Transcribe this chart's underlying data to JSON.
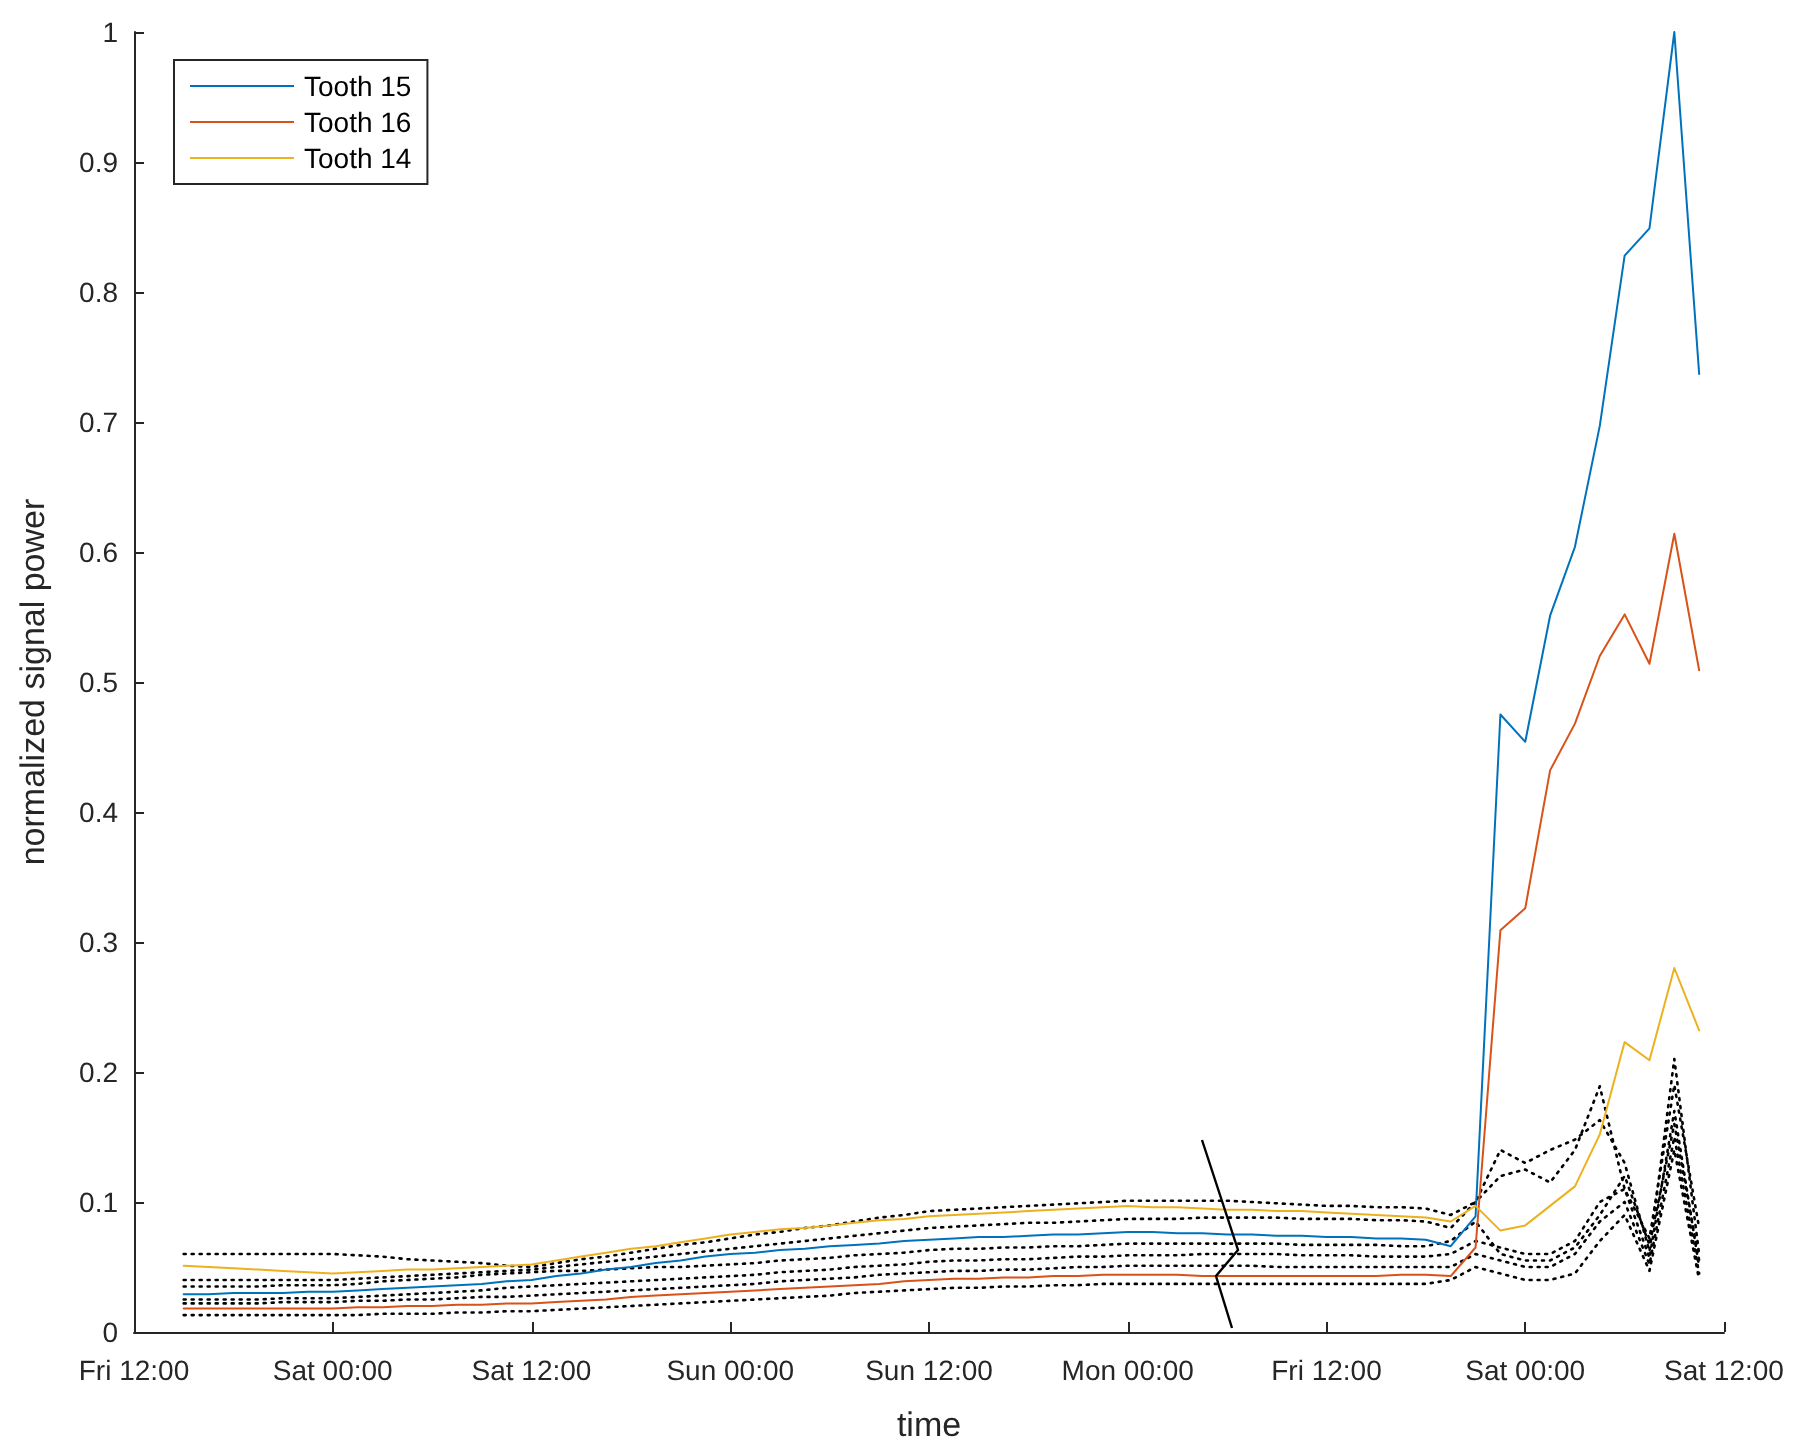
{
  "chart_data": {
    "type": "line",
    "xlabel": "time",
    "ylabel": "normalized signal power",
    "categories": [
      "Fri 12:00",
      null,
      null,
      null,
      null,
      null,
      null,
      null,
      "Sat 00:00",
      null,
      null,
      null,
      null,
      null,
      null,
      null,
      "Sat 12:00",
      null,
      null,
      null,
      null,
      null,
      null,
      null,
      "Sun 00:00",
      null,
      null,
      null,
      null,
      null,
      null,
      null,
      "Sun 12:00",
      null,
      null,
      null,
      null,
      null,
      null,
      null,
      "Mon 00:00",
      null,
      null,
      null,
      null,
      null,
      null,
      null,
      "Fri 12:00",
      null,
      null,
      null,
      null,
      null,
      null,
      null,
      "Sat 00:00",
      null,
      null,
      null,
      null,
      null,
      null,
      null,
      "Sat 12:00"
    ],
    "ylim": [
      0,
      1
    ],
    "yticks": [
      0,
      0.1,
      0.2,
      0.3,
      0.4,
      0.5,
      0.6,
      0.7,
      0.8,
      0.9,
      1
    ],
    "grid": false,
    "legend": "top left",
    "marker": "none",
    "line_style": "solid",
    "series": [
      {
        "color": "#000000",
        "line_style": "dotted",
        "values": [
          null,
          null,
          0.06,
          0.06,
          0.06,
          0.06,
          0.06,
          0.06,
          0.06,
          0.059,
          0.058,
          0.056,
          0.055,
          0.054,
          0.053,
          0.051,
          0.05,
          0.053,
          0.056,
          0.058,
          0.061,
          0.064,
          0.067,
          0.069,
          0.072,
          0.075,
          0.077,
          0.08,
          0.082,
          0.085,
          0.088,
          0.09,
          0.093,
          0.094,
          0.095,
          0.096,
          0.097,
          0.098,
          0.099,
          0.1,
          0.101,
          0.101,
          0.101,
          0.101,
          0.101,
          0.1,
          0.099,
          0.098,
          0.097,
          0.097,
          0.096,
          0.096,
          0.095,
          0.09,
          0.1,
          0.14,
          0.13,
          0.14,
          0.148,
          0.163,
          0.13,
          0.062,
          0.21,
          0.06,
          null
        ]
      },
      {
        "color": "#000000",
        "line_style": "dotted",
        "values": [
          null,
          null,
          0.04,
          0.04,
          0.04,
          0.04,
          0.04,
          0.04,
          0.04,
          0.041,
          0.042,
          0.043,
          0.044,
          0.045,
          0.046,
          0.047,
          0.048,
          0.05,
          0.052,
          0.054,
          0.056,
          0.058,
          0.06,
          0.062,
          0.064,
          0.066,
          0.068,
          0.07,
          0.072,
          0.074,
          0.076,
          0.078,
          0.08,
          0.081,
          0.082,
          0.083,
          0.084,
          0.084,
          0.085,
          0.086,
          0.087,
          0.087,
          0.087,
          0.088,
          0.088,
          0.088,
          0.088,
          0.087,
          0.087,
          0.087,
          0.086,
          0.086,
          0.085,
          0.08,
          0.1,
          0.12,
          0.125,
          0.115,
          0.14,
          0.189,
          0.11,
          0.072,
          0.19,
          0.08,
          null
        ]
      },
      {
        "color": "#000000",
        "line_style": "dotted",
        "values": [
          null,
          null,
          0.035,
          0.035,
          0.035,
          0.035,
          0.036,
          0.036,
          0.036,
          0.037,
          0.039,
          0.04,
          0.041,
          0.042,
          0.044,
          0.045,
          0.046,
          0.047,
          0.047,
          0.048,
          0.049,
          0.05,
          0.05,
          0.051,
          0.052,
          0.053,
          0.055,
          0.056,
          0.057,
          0.059,
          0.06,
          0.061,
          0.063,
          0.064,
          0.064,
          0.065,
          0.065,
          0.066,
          0.066,
          0.067,
          0.068,
          0.068,
          0.068,
          0.068,
          0.068,
          0.068,
          0.068,
          0.067,
          0.067,
          0.067,
          0.067,
          0.066,
          0.066,
          0.07,
          0.085,
          0.06,
          0.055,
          0.055,
          0.065,
          0.09,
          0.12,
          0.067,
          0.16,
          0.055,
          null
        ]
      },
      {
        "color": "#000000",
        "line_style": "dotted",
        "values": [
          null,
          null,
          0.025,
          0.025,
          0.025,
          0.025,
          0.026,
          0.026,
          0.026,
          0.027,
          0.028,
          0.029,
          0.03,
          0.031,
          0.032,
          0.034,
          0.035,
          0.036,
          0.037,
          0.038,
          0.039,
          0.04,
          0.041,
          0.042,
          0.043,
          0.044,
          0.046,
          0.047,
          0.048,
          0.05,
          0.051,
          0.052,
          0.054,
          0.055,
          0.055,
          0.056,
          0.056,
          0.057,
          0.058,
          0.058,
          0.059,
          0.059,
          0.059,
          0.06,
          0.06,
          0.06,
          0.06,
          0.059,
          0.059,
          0.059,
          0.058,
          0.058,
          0.058,
          0.06,
          0.07,
          0.065,
          0.06,
          0.06,
          0.07,
          0.1,
          0.11,
          0.057,
          0.17,
          0.05,
          null
        ]
      },
      {
        "color": "#000000",
        "line_style": "dotted",
        "values": [
          null,
          null,
          0.022,
          0.022,
          0.022,
          0.022,
          0.023,
          0.023,
          0.023,
          0.024,
          0.024,
          0.025,
          0.025,
          0.026,
          0.027,
          0.027,
          0.028,
          0.029,
          0.03,
          0.031,
          0.032,
          0.033,
          0.034,
          0.035,
          0.036,
          0.037,
          0.039,
          0.04,
          0.041,
          0.042,
          0.044,
          0.045,
          0.046,
          0.047,
          0.047,
          0.048,
          0.048,
          0.049,
          0.05,
          0.05,
          0.051,
          0.051,
          0.051,
          0.051,
          0.051,
          0.051,
          0.05,
          0.05,
          0.05,
          0.05,
          0.05,
          0.05,
          0.05,
          0.05,
          0.06,
          0.055,
          0.05,
          0.05,
          0.06,
          0.085,
          0.1,
          0.052,
          0.15,
          0.045,
          null
        ]
      },
      {
        "color": "#000000",
        "line_style": "dotted",
        "values": [
          null,
          null,
          0.013,
          0.013,
          0.013,
          0.013,
          0.013,
          0.013,
          0.013,
          0.013,
          0.014,
          0.014,
          0.014,
          0.015,
          0.015,
          0.016,
          0.016,
          0.017,
          0.018,
          0.019,
          0.02,
          0.021,
          0.022,
          0.023,
          0.024,
          0.025,
          0.026,
          0.027,
          0.028,
          0.03,
          0.031,
          0.032,
          0.033,
          0.034,
          0.034,
          0.035,
          0.035,
          0.036,
          0.036,
          0.037,
          0.037,
          0.037,
          0.037,
          0.037,
          0.037,
          0.037,
          0.037,
          0.037,
          0.037,
          0.037,
          0.037,
          0.037,
          0.037,
          0.04,
          0.05,
          0.045,
          0.04,
          0.04,
          0.045,
          0.07,
          0.09,
          0.047,
          0.14,
          0.04,
          null
        ]
      },
      {
        "name": "Tooth 15",
        "color": "#0072bd",
        "values": [
          null,
          null,
          0.029,
          0.029,
          0.03,
          0.03,
          0.03,
          0.031,
          0.031,
          0.032,
          0.033,
          0.034,
          0.035,
          0.036,
          0.037,
          0.039,
          0.04,
          0.043,
          0.045,
          0.048,
          0.05,
          0.053,
          0.055,
          0.058,
          0.06,
          0.061,
          0.063,
          0.064,
          0.066,
          0.067,
          0.068,
          0.07,
          0.071,
          0.072,
          0.073,
          0.073,
          0.074,
          0.075,
          0.075,
          0.076,
          0.077,
          0.077,
          0.076,
          0.076,
          0.075,
          0.075,
          0.074,
          0.074,
          0.073,
          0.073,
          0.072,
          0.072,
          0.071,
          0.066,
          0.089,
          0.475,
          0.454,
          0.551,
          0.604,
          0.697,
          0.828,
          0.849,
          1.0,
          0.737,
          null
        ]
      },
      {
        "name": "Tooth 16",
        "color": "#d95319",
        "values": [
          null,
          null,
          0.018,
          0.018,
          0.018,
          0.018,
          0.018,
          0.018,
          0.018,
          0.019,
          0.019,
          0.02,
          0.02,
          0.021,
          0.021,
          0.022,
          0.022,
          0.023,
          0.024,
          0.025,
          0.027,
          0.028,
          0.029,
          0.03,
          0.031,
          0.032,
          0.033,
          0.034,
          0.035,
          0.036,
          0.037,
          0.039,
          0.04,
          0.041,
          0.041,
          0.042,
          0.042,
          0.043,
          0.043,
          0.044,
          0.044,
          0.044,
          0.044,
          0.043,
          0.043,
          0.043,
          0.043,
          0.043,
          0.043,
          0.043,
          0.043,
          0.044,
          0.044,
          0.043,
          0.065,
          0.309,
          0.326,
          0.432,
          0.468,
          0.52,
          0.552,
          0.514,
          0.614,
          0.509,
          null
        ]
      },
      {
        "name": "Tooth 14",
        "color": "#edb120",
        "values": [
          null,
          null,
          0.051,
          0.05,
          0.049,
          0.048,
          0.047,
          0.046,
          0.045,
          0.046,
          0.047,
          0.048,
          0.048,
          0.049,
          0.05,
          0.051,
          0.052,
          0.055,
          0.058,
          0.061,
          0.064,
          0.066,
          0.069,
          0.072,
          0.075,
          0.077,
          0.079,
          0.08,
          0.082,
          0.084,
          0.086,
          0.087,
          0.089,
          0.09,
          0.091,
          0.092,
          0.093,
          0.094,
          0.095,
          0.096,
          0.097,
          0.096,
          0.096,
          0.095,
          0.094,
          0.094,
          0.093,
          0.093,
          0.092,
          0.091,
          0.09,
          0.089,
          0.088,
          0.085,
          0.097,
          0.078,
          0.082,
          0.097,
          0.112,
          0.152,
          0.223,
          0.209,
          0.28,
          0.232,
          null
        ]
      }
    ]
  }
}
